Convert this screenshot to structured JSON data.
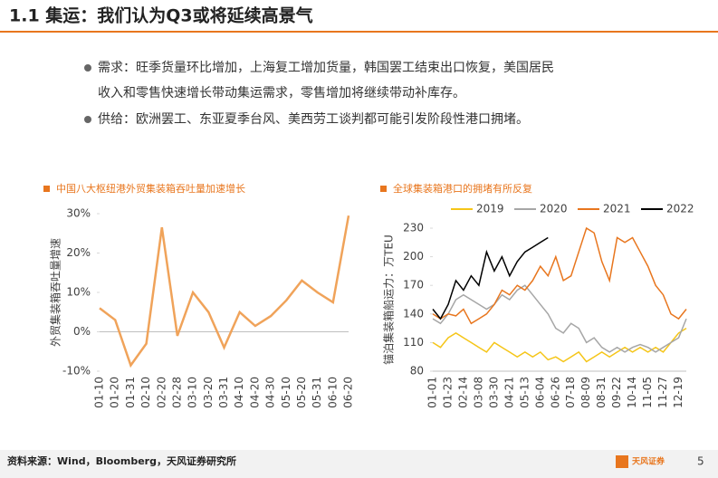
{
  "header": {
    "title": "1.1 集运：我们认为Q3或将延续高景气"
  },
  "bullets": [
    "需求：旺季货量环比增加，上海复工增加货量，韩国罢工结束出口恢复，美国居民",
    "收入和零售快速增长带动集运需求，零售增加将继续带动补库存。",
    "供给：欧洲罢工、东亚夏季台风、美西劳工谈判都可能引发阶段性港口拥堵。"
  ],
  "chart_data": [
    {
      "type": "line",
      "title": "中国八大枢纽港外贸集装箱吞吐量加速增长",
      "y_label": "外贸集装箱吞吐量增速",
      "categories": [
        "01-10",
        "01-20",
        "01-31",
        "02-10",
        "02-20",
        "02-28",
        "03-10",
        "03-20",
        "03-31",
        "04-10",
        "04-20",
        "04-30",
        "05-10",
        "05-20",
        "05-31",
        "06-10",
        "06-20"
      ],
      "series": [
        {
          "name": null,
          "color": "#f0a35a",
          "values": [
            6,
            3,
            -8.5,
            -3,
            26.5,
            -1,
            10,
            5,
            -4,
            5,
            1.5,
            4,
            8,
            13,
            10,
            7.5,
            29.5
          ]
        }
      ],
      "ylim": [
        -10,
        30
      ],
      "yticks": [
        {
          "value": -10,
          "label": "-10%"
        },
        {
          "value": 0,
          "label": "0%"
        },
        {
          "value": 10,
          "label": "10%"
        },
        {
          "value": 20,
          "label": "20%"
        },
        {
          "value": 30,
          "label": "30%"
        }
      ]
    },
    {
      "type": "line",
      "title": "全球集装箱港口的拥堵有所反复",
      "y_label": "锚泊集装箱船运力：万TEU",
      "legend": "top",
      "categories": [
        "01-01",
        null,
        "01-23",
        null,
        "02-14",
        null,
        "03-08",
        null,
        "03-30",
        null,
        "04-21",
        null,
        "05-13",
        null,
        "06-04",
        null,
        "06-26",
        null,
        "07-18",
        null,
        "08-09",
        null,
        "08-31",
        null,
        "09-22",
        null,
        "10-14",
        null,
        "11-05",
        null,
        "11-27",
        null,
        "12-19",
        null
      ],
      "series": [
        {
          "name": "2019",
          "color": "#f5c518",
          "values": [
            110,
            105,
            115,
            120,
            115,
            110,
            105,
            100,
            110,
            105,
            100,
            95,
            100,
            95,
            100,
            92,
            95,
            90,
            95,
            100,
            90,
            95,
            100,
            95,
            100,
            105,
            100,
            105,
            100,
            105,
            100,
            110,
            120,
            125
          ]
        },
        {
          "name": "2020",
          "color": "#a6a6a6",
          "values": [
            135,
            130,
            140,
            155,
            160,
            155,
            150,
            145,
            150,
            160,
            155,
            165,
            170,
            160,
            150,
            140,
            125,
            120,
            130,
            125,
            110,
            115,
            105,
            100,
            105,
            100,
            105,
            108,
            105,
            100,
            105,
            110,
            115,
            135
          ]
        },
        {
          "name": "2021",
          "color": "#e8761e",
          "values": [
            140,
            135,
            140,
            138,
            145,
            130,
            135,
            140,
            150,
            165,
            160,
            170,
            165,
            175,
            190,
            180,
            200,
            175,
            180,
            205,
            230,
            225,
            195,
            175,
            220,
            215,
            220,
            205,
            190,
            170,
            160,
            140,
            135,
            145
          ]
        },
        {
          "name": "2022",
          "color": "#000000",
          "values": [
            145,
            135,
            150,
            175,
            165,
            180,
            170,
            205,
            185,
            200,
            180,
            195,
            205,
            210,
            215,
            220,
            null,
            null,
            null,
            null,
            null,
            null,
            null,
            null,
            null,
            null,
            null,
            null,
            null,
            null,
            null,
            null,
            null,
            null
          ]
        }
      ],
      "ylim": [
        80,
        230
      ],
      "yticks": [
        80,
        110,
        140,
        170,
        200,
        230
      ]
    }
  ],
  "footer": {
    "source": "资料来源：Wind，Bloomberg，天风证券研究所",
    "logo": "天风证券",
    "page": "5"
  }
}
